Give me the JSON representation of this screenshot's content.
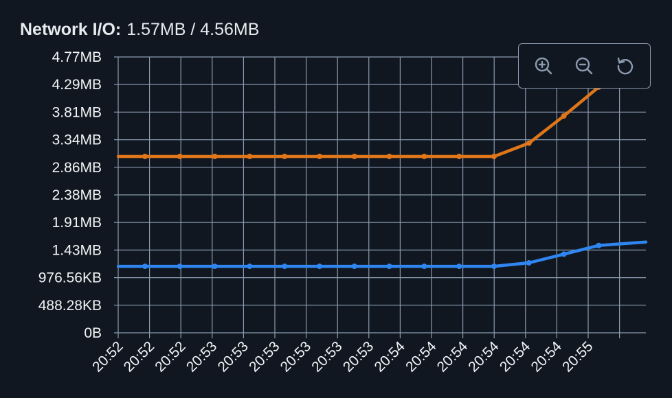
{
  "header": {
    "label": "Network I/O:",
    "value": "1.57MB / 4.56MB"
  },
  "toolbar": {
    "icons": [
      "zoom-in-icon",
      "zoom-out-icon",
      "reset-icon"
    ]
  },
  "colors": {
    "background": "#111720",
    "grid": "#8a9bb0",
    "series_orange": "#e0761a",
    "series_blue": "#2f86f0"
  },
  "chart_data": {
    "type": "line",
    "title": "Network I/O:",
    "ytick_labels": [
      "0B",
      "488.28KB",
      "976.56KB",
      "1.43MB",
      "1.91MB",
      "2.38MB",
      "2.86MB",
      "3.34MB",
      "3.81MB",
      "4.29MB",
      "4.77MB"
    ],
    "ylim_mb": [
      0,
      4.77
    ],
    "xtick_labels": [
      "20:52",
      "20:52",
      "20:52",
      "20:53",
      "20:53",
      "20:53",
      "20:53",
      "20:53",
      "20:53",
      "20:54",
      "20:54",
      "20:54",
      "20:54",
      "20:54",
      "20:54",
      "20:55"
    ],
    "grid": true,
    "series": [
      {
        "color": "#e0761a",
        "values_mb": [
          3.05,
          3.05,
          3.05,
          3.05,
          3.05,
          3.05,
          3.05,
          3.05,
          3.05,
          3.05,
          3.05,
          3.05,
          3.28,
          3.75,
          4.25,
          4.56
        ]
      },
      {
        "color": "#2f86f0",
        "values_mb": [
          1.15,
          1.15,
          1.15,
          1.15,
          1.15,
          1.15,
          1.15,
          1.15,
          1.15,
          1.15,
          1.15,
          1.15,
          1.21,
          1.36,
          1.51,
          1.57
        ]
      }
    ]
  }
}
